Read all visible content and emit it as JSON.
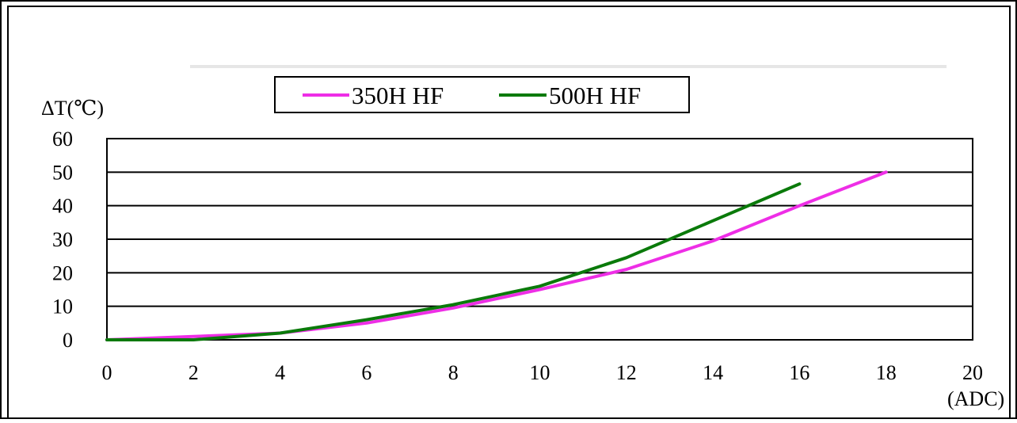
{
  "chart_data": {
    "type": "line",
    "title": "",
    "xlabel": "(ADC)",
    "ylabel": "ΔT(℃)",
    "xlim": [
      0,
      20
    ],
    "ylim": [
      0,
      60
    ],
    "x_ticks": [
      "0",
      "2",
      "4",
      "6",
      "8",
      "10",
      "12",
      "14",
      "16",
      "18",
      "20"
    ],
    "y_ticks": [
      "0",
      "10",
      "20",
      "30",
      "40",
      "50",
      "60"
    ],
    "grid": "horizontal",
    "legend_position": "top-left",
    "series": [
      {
        "name": "350H HF",
        "color": "#ee2ee6",
        "x": [
          0,
          2,
          4,
          6,
          8,
          10,
          12,
          14,
          16,
          18
        ],
        "y": [
          0,
          1,
          2,
          5,
          9.5,
          15,
          21,
          29.5,
          40,
          50
        ]
      },
      {
        "name": "500H HF",
        "color": "#0a7a0a",
        "x": [
          0,
          2,
          4,
          6,
          8,
          10,
          12,
          14,
          16
        ],
        "y": [
          0,
          0,
          2,
          6,
          10.5,
          16,
          24.5,
          35.5,
          46.5
        ]
      }
    ]
  }
}
